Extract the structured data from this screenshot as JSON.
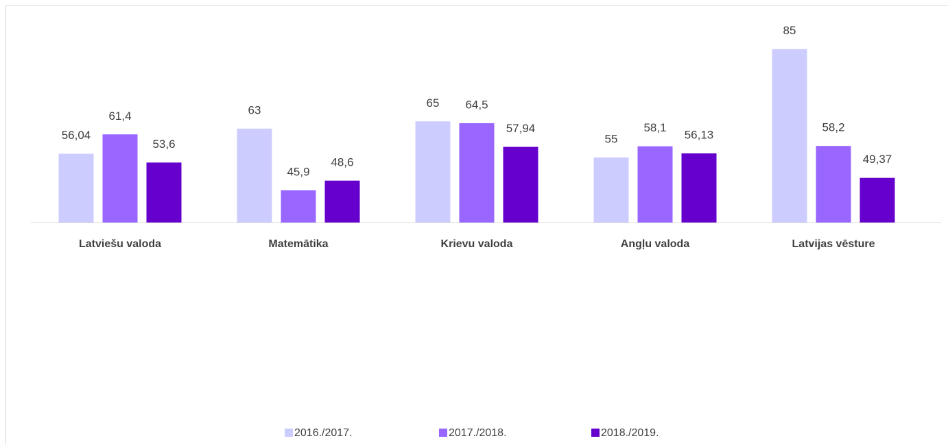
{
  "chart_data": {
    "type": "bar",
    "categories": [
      "Latviešu valoda",
      "Matemātika",
      "Krievu valoda",
      "Angļu valoda",
      "Latvijas vēsture"
    ],
    "series": [
      {
        "name": "2016./2017.",
        "color": "#ccccff",
        "values": [
          56.04,
          63,
          65,
          55,
          85
        ],
        "value_labels": [
          "56,04",
          "63",
          "65",
          "55",
          "85"
        ]
      },
      {
        "name": "2017./2018.",
        "color": "#9966ff",
        "values": [
          61.4,
          45.9,
          64.5,
          58.1,
          58.2
        ],
        "value_labels": [
          "61,4",
          "45,9",
          "64,5",
          "58,1",
          "58,2"
        ]
      },
      {
        "name": "2018./2019.",
        "color": "#6600cc",
        "values": [
          53.6,
          48.6,
          57.94,
          56.13,
          49.37
        ],
        "value_labels": [
          "53,6",
          "48,6",
          "57,94",
          "56,13",
          "49,37"
        ]
      }
    ],
    "ylim": [
      37,
      95
    ],
    "grid": false,
    "legend": "bottom"
  }
}
